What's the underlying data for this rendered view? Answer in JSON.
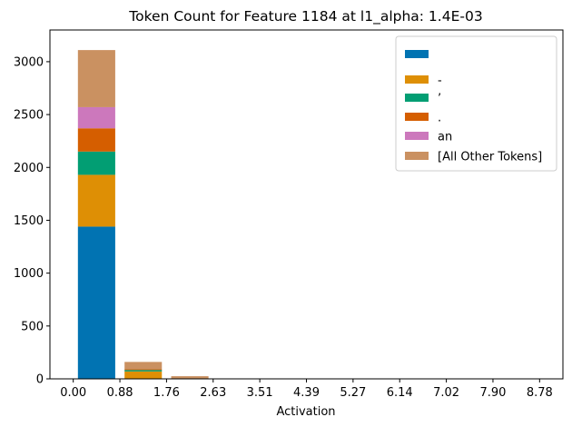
{
  "chart_data": {
    "type": "bar",
    "stacked": true,
    "title": "Token Count for Feature 1184 at l1_alpha: 1.4E-03",
    "xlabel": "Activation",
    "ylabel": "",
    "ylim": [
      0,
      3300
    ],
    "yticks": [
      0,
      500,
      1000,
      1500,
      2000,
      2500,
      3000
    ],
    "xticks": [
      "0.00",
      "0.88",
      "1.76",
      "2.63",
      "3.51",
      "4.39",
      "5.27",
      "6.14",
      "7.02",
      "7.90",
      "8.78"
    ],
    "xlim": [
      -0.5,
      10.5
    ],
    "bar_width": 0.8,
    "bin_centers": [
      0.5,
      1.5,
      2.5,
      3.5,
      4.5,
      5.5,
      6.5,
      7.5,
      8.5,
      9.5
    ],
    "legend_position": "top-right",
    "grid": false,
    "series": [
      {
        "name": " ",
        "color": "#0173b2",
        "values": [
          1440,
          0,
          0,
          0,
          0,
          0,
          0,
          0,
          0,
          0
        ]
      },
      {
        "name": "-",
        "color": "#de8f05",
        "values": [
          490,
          70,
          0,
          0,
          0,
          0,
          0,
          0,
          0,
          0
        ]
      },
      {
        "name": "’",
        "color": "#029e73",
        "values": [
          220,
          15,
          0,
          3,
          3,
          0,
          3,
          0,
          0,
          3
        ]
      },
      {
        "name": ".",
        "color": "#d55e00",
        "values": [
          220,
          5,
          0,
          0,
          0,
          3,
          0,
          3,
          0,
          0
        ]
      },
      {
        "name": " an",
        "color": "#cc78bc",
        "values": [
          200,
          0,
          0,
          0,
          0,
          0,
          0,
          0,
          0,
          0
        ]
      },
      {
        "name": "[All Other Tokens]",
        "color": "#ca9161",
        "values": [
          540,
          70,
          25,
          0,
          0,
          0,
          0,
          0,
          0,
          0
        ]
      }
    ]
  }
}
